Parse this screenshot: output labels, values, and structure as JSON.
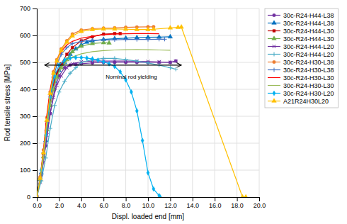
{
  "chart_data": {
    "type": "line",
    "xlabel": "Displ. loaded end  [mm]",
    "ylabel": "Rod tensile stress  [MPa]",
    "xlim": [
      0,
      20.0
    ],
    "ylim": [
      0,
      700
    ],
    "xticks": [
      {
        "value": 0.0,
        "label": "0.0"
      },
      {
        "value": 2.0,
        "label": "2.0"
      },
      {
        "value": 4.0,
        "label": "4.0"
      },
      {
        "value": 6.0,
        "label": "6.0"
      },
      {
        "value": 8.0,
        "label": "8.0"
      },
      {
        "value": 10.0,
        "label": "10.0"
      },
      {
        "value": 12.0,
        "label": "12.0"
      },
      {
        "value": 14.0,
        "label": "14.0"
      },
      {
        "value": 16.0,
        "label": "16.0"
      },
      {
        "value": 18.0,
        "label": "18.0"
      },
      {
        "value": 20.0,
        "label": "20.0"
      }
    ],
    "yticks": [
      0,
      100,
      200,
      300,
      400,
      500,
      600,
      700
    ],
    "grid": true,
    "legend": "upper right",
    "line_style": "solid",
    "annotations": [
      {
        "text": "Nominal rod yielding",
        "x": 8.5,
        "y": 455,
        "arrow_x": [
          0.7,
          13.0
        ],
        "arrow_y": 490
      }
    ],
    "series": [
      {
        "name": "30c-R24-H44-L38",
        "color": "#7030A0",
        "marker": "circle",
        "x": [
          0,
          0.4,
          0.8,
          1.2,
          1.6,
          2.0,
          2.5,
          3.0,
          3.5,
          4.0,
          5.0,
          6.0,
          7.0,
          8.0,
          9.0,
          10.0,
          11.0,
          12.0,
          12.5
        ],
        "values": [
          0,
          80,
          190,
          310,
          400,
          450,
          480,
          490,
          493,
          495,
          498,
          500,
          500,
          500,
          500,
          500,
          500,
          500,
          505
        ]
      },
      {
        "name": "30c-R24-H44-L38",
        "color": "#0070C0",
        "marker": "triangle",
        "x": [
          0,
          0.4,
          0.8,
          1.2,
          1.6,
          2.0,
          2.5,
          3.0,
          3.5,
          4.0,
          4.5,
          5.0,
          6.0,
          7.0,
          8.0,
          9.0,
          10.0,
          11.0,
          12.0
        ],
        "values": [
          0,
          90,
          210,
          340,
          430,
          470,
          500,
          530,
          550,
          565,
          575,
          580,
          585,
          588,
          590,
          592,
          593,
          594,
          595
        ]
      },
      {
        "name": "30c-R24-H44-L30",
        "color": "#C00000",
        "marker": "square",
        "x": [
          0,
          0.3,
          0.6,
          0.9,
          1.2,
          1.5,
          1.8,
          2.2,
          2.7,
          3.2,
          4.0,
          5.0,
          6.0,
          7.0,
          7.5
        ],
        "values": [
          0,
          70,
          160,
          270,
          360,
          420,
          460,
          495,
          530,
          555,
          580,
          595,
          605,
          607,
          607
        ]
      },
      {
        "name": "30c-R24-H44-L30",
        "color": "#70AD47",
        "marker": "triangle",
        "x": [
          0,
          0.3,
          0.6,
          0.9,
          1.2,
          1.5,
          1.8,
          2.2,
          2.7,
          3.2,
          4.0,
          5.0,
          6.0,
          6.5
        ],
        "values": [
          0,
          65,
          150,
          250,
          340,
          400,
          445,
          480,
          510,
          540,
          560,
          570,
          573,
          572
        ]
      },
      {
        "name": "30c-R24-H44-L20",
        "color": "#7030A0",
        "marker": "x",
        "x": [
          0,
          0.3,
          0.6,
          0.9,
          1.2,
          1.5,
          1.8,
          2.2,
          2.7,
          3.2,
          4.0,
          5.0,
          6.0,
          7.0,
          8.0,
          9.0,
          10.0,
          11.0,
          12.0,
          12.5
        ],
        "values": [
          0,
          55,
          130,
          230,
          310,
          370,
          415,
          450,
          480,
          495,
          502,
          505,
          505,
          505,
          505,
          504,
          503,
          502,
          500,
          505
        ]
      },
      {
        "name": "30c-R24-H44-L20",
        "color": "#4BACC6",
        "marker": "plus",
        "x": [
          0,
          0.4,
          0.8,
          1.2,
          1.6,
          2.0,
          2.5,
          3.0,
          3.5,
          4.0,
          5.0,
          6.0,
          7.0,
          8.0,
          9.0,
          10.0,
          11.0,
          12.0,
          12.5
        ],
        "values": [
          0,
          60,
          145,
          255,
          340,
          390,
          430,
          460,
          480,
          500,
          510,
          515,
          515,
          510,
          505,
          498,
          490,
          480,
          475
        ]
      },
      {
        "name": "30c-R24-H30-L38",
        "color": "#ED7D31",
        "marker": "circle",
        "x": [
          0,
          0.3,
          0.6,
          0.9,
          1.2,
          1.5,
          1.8,
          2.2,
          2.7,
          3.2,
          4.0,
          5.0,
          6.0,
          7.0,
          8.0,
          9.0,
          10.0,
          10.5
        ],
        "values": [
          0,
          75,
          175,
          295,
          390,
          465,
          510,
          550,
          580,
          605,
          620,
          625,
          627,
          628,
          630,
          631,
          632,
          632
        ]
      },
      {
        "name": "30c-R24-H30-L38",
        "color": "#4472C4",
        "marker": "plus",
        "x": [
          0,
          0.3,
          0.6,
          0.9,
          1.2,
          1.5,
          1.8,
          2.2,
          2.7,
          3.2,
          4.0,
          5.0,
          6.0,
          7.0,
          8.0,
          9.0,
          10.0,
          11.0,
          11.5
        ],
        "values": [
          0,
          70,
          165,
          280,
          375,
          445,
          490,
          530,
          555,
          570,
          578,
          582,
          583,
          584,
          585,
          585,
          585,
          586,
          586
        ]
      },
      {
        "name": "30c-R24-H30-L30",
        "color": "#FF0000",
        "marker": "none",
        "x": [
          0,
          0.3,
          0.6,
          0.9,
          1.2,
          1.5,
          1.8,
          2.2,
          2.7,
          3.2,
          4.0,
          5.0,
          6.0,
          7.0,
          8.0,
          9.0,
          10.0,
          11.0
        ],
        "values": [
          0,
          75,
          175,
          305,
          400,
          465,
          508,
          540,
          565,
          578,
          590,
          597,
          603,
          605,
          606,
          607,
          607,
          606
        ]
      },
      {
        "name": "30c-R24-H30-L30",
        "color": "#9BBB59",
        "marker": "none",
        "x": [
          0,
          0.3,
          0.6,
          0.9,
          1.2,
          1.5,
          1.8,
          2.2,
          2.7,
          3.2,
          4.0,
          5.0,
          6.0,
          7.0,
          8.0,
          9.0,
          10.0,
          11.0,
          12.0
        ],
        "values": [
          0,
          60,
          145,
          255,
          340,
          405,
          450,
          480,
          505,
          520,
          532,
          540,
          544,
          546,
          547,
          548,
          547,
          546,
          545
        ]
      },
      {
        "name": "30c-R24-H30-L20",
        "color": "#00B0F0",
        "marker": "diamond",
        "x": [
          0,
          0.4,
          0.8,
          1.2,
          1.6,
          2.0,
          2.5,
          3.0,
          3.5,
          4.0,
          4.5,
          5.0,
          5.5,
          6.0,
          6.5,
          7.0,
          7.5,
          8.0,
          8.5,
          9.0,
          9.5,
          10.0,
          10.5,
          11.0,
          11.1
        ],
        "values": [
          0,
          100,
          230,
          370,
          450,
          490,
          510,
          516,
          518,
          518,
          516,
          513,
          508,
          502,
          495,
          485,
          465,
          435,
          390,
          320,
          210,
          90,
          30,
          5,
          0
        ]
      },
      {
        "name": "A21R24H30L20",
        "color": "#FFC000",
        "marker": "triangle",
        "x": [
          0,
          0.3,
          0.6,
          0.9,
          1.2,
          1.5,
          1.8,
          2.2,
          2.7,
          3.2,
          4.0,
          5.0,
          6.0,
          7.0,
          8.0,
          9.0,
          10.0,
          10.5,
          12.0,
          12.7,
          13.0,
          18.5,
          18.8
        ],
        "values": [
          0,
          70,
          165,
          285,
          385,
          460,
          505,
          545,
          575,
          598,
          615,
          622,
          624,
          624,
          623,
          622,
          622,
          623,
          628,
          630,
          631,
          0,
          0
        ]
      }
    ]
  }
}
